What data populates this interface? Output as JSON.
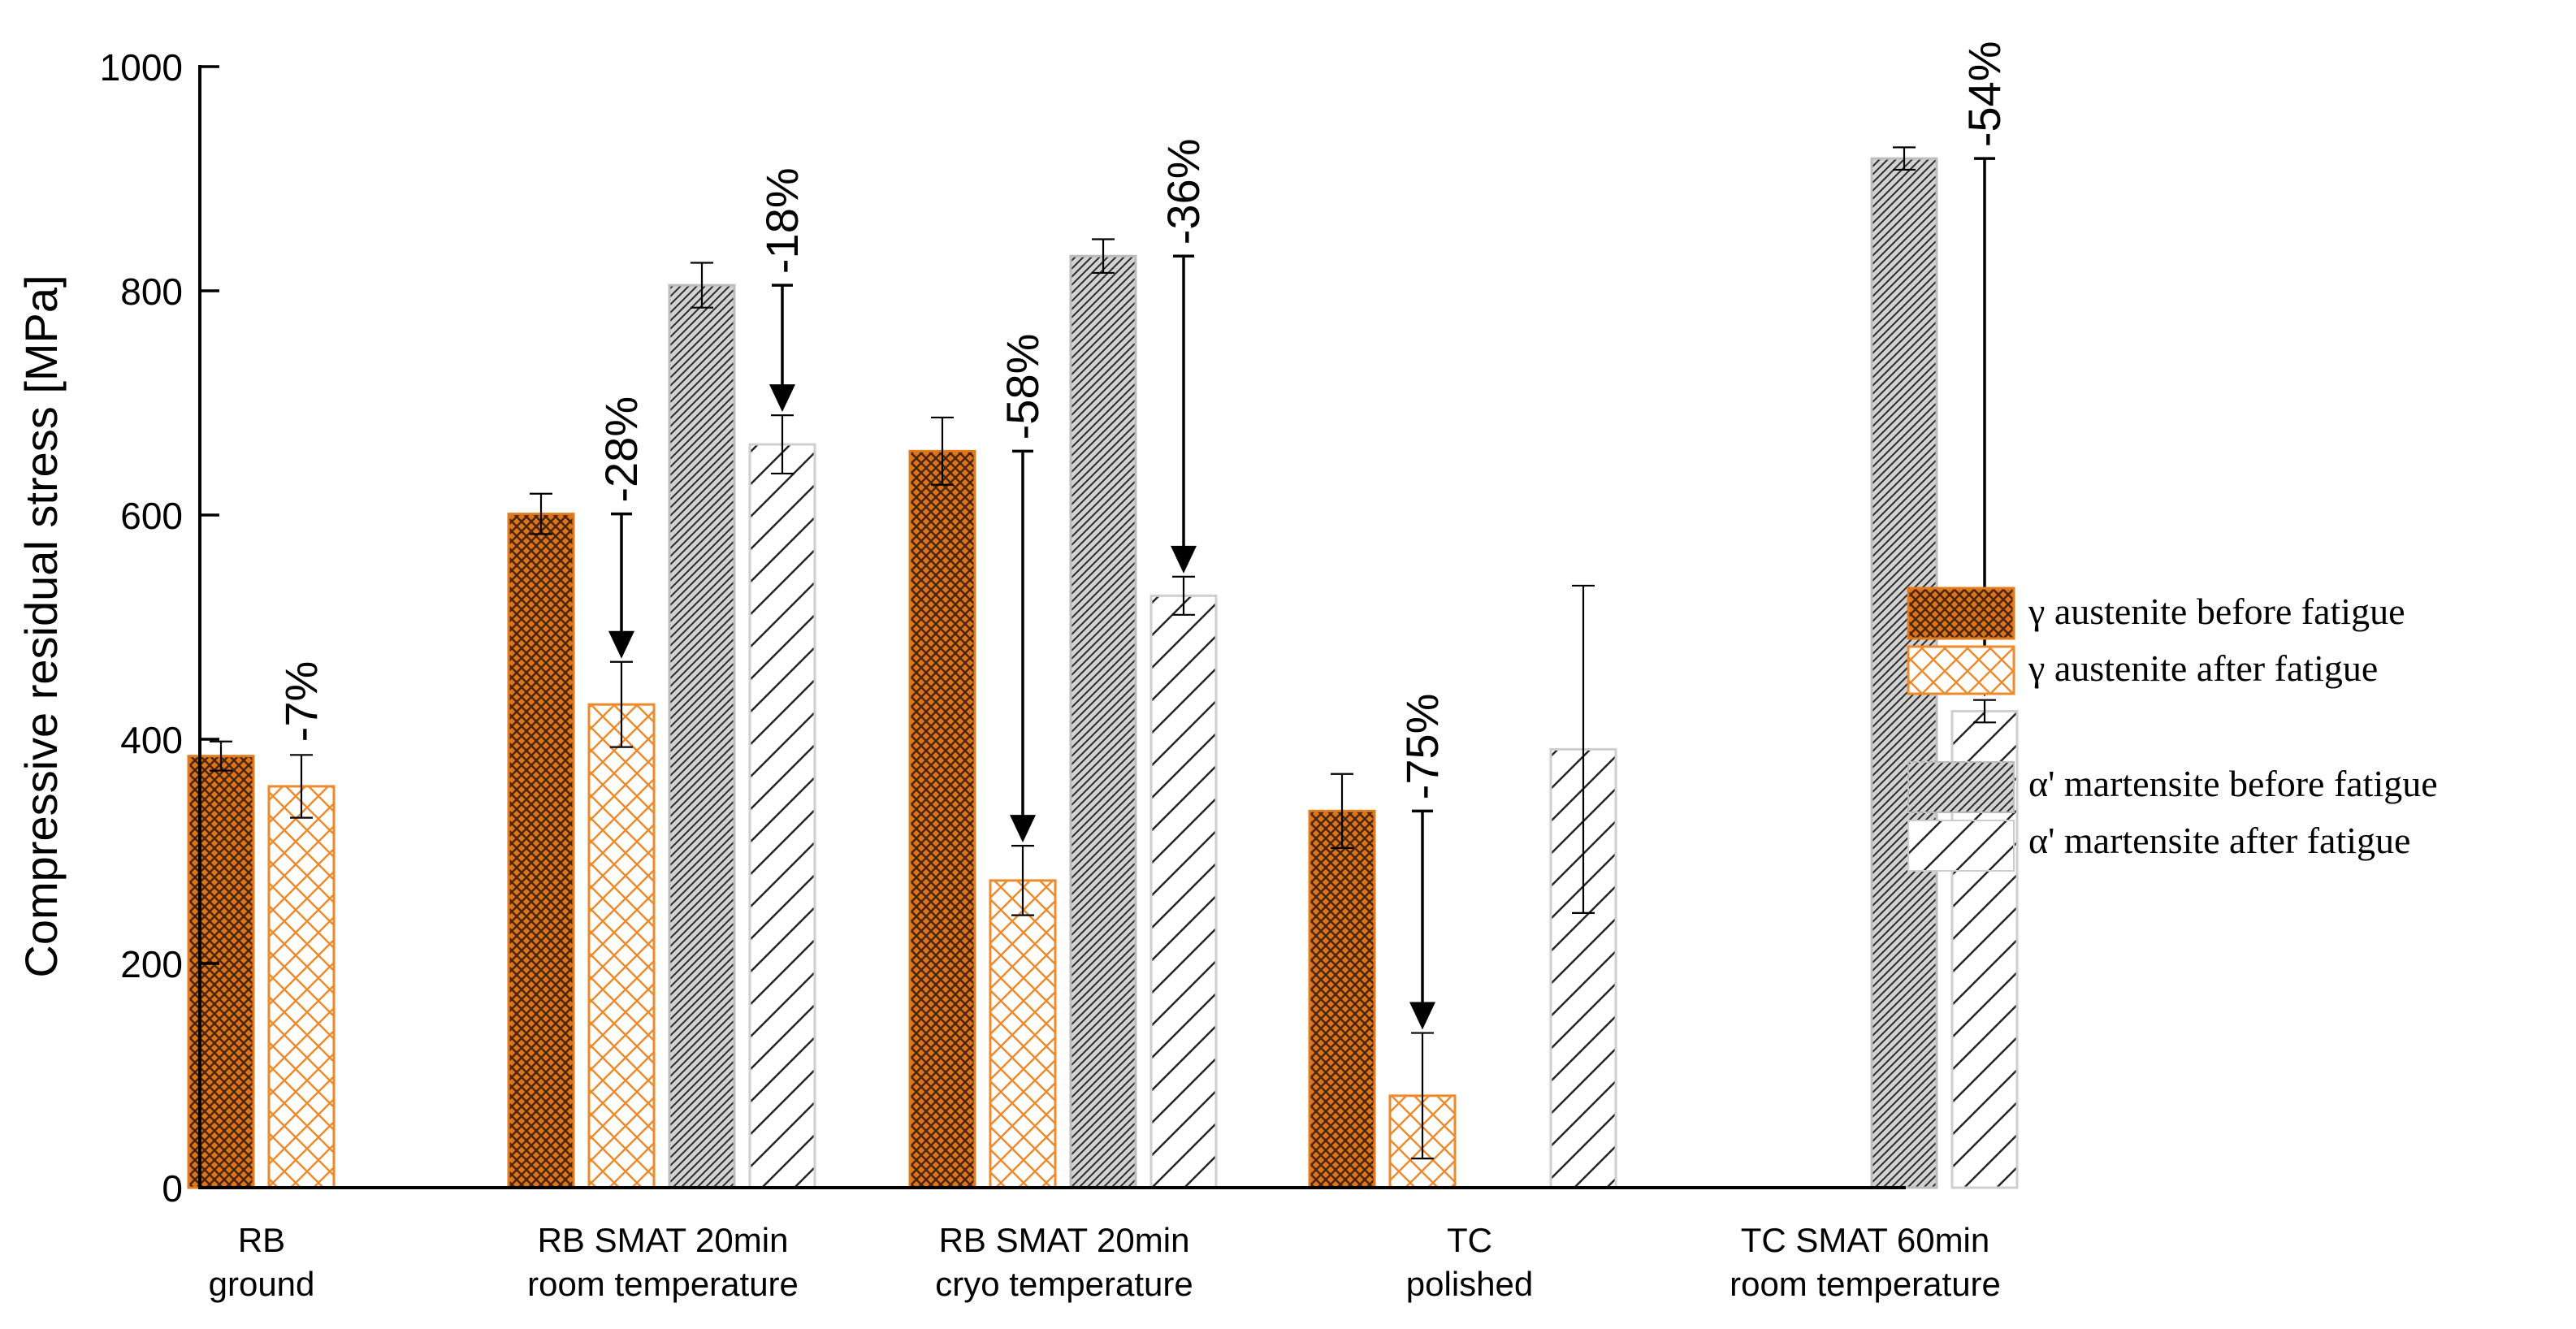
{
  "chart_data": {
    "type": "bar",
    "title": "",
    "xlabel": "",
    "ylabel": "Compressive residual stress [MPa]",
    "ylim": [
      0,
      1000
    ],
    "yticks": [
      0,
      200,
      400,
      600,
      800,
      1000
    ],
    "categories": [
      [
        "RB",
        "ground"
      ],
      [
        "RB SMAT 20min",
        "room temperature"
      ],
      [
        "RB SMAT 20min",
        "cryo temperature"
      ],
      [
        "TC",
        "polished"
      ],
      [
        "TC SMAT 60min",
        "room temperature"
      ]
    ],
    "series": [
      {
        "name": "γ austenite before fatigue",
        "style": "crosshatch-filled",
        "color": "#e07b1f",
        "values": [
          385,
          601,
          657,
          336,
          null
        ],
        "errors": [
          13,
          18,
          30,
          33,
          null
        ]
      },
      {
        "name": "γ austenite after fatigue",
        "style": "crosshatch-open",
        "color": "#e07b1f",
        "values": [
          358,
          431,
          274,
          82,
          null
        ],
        "errors": [
          28,
          38,
          31,
          56,
          null
        ]
      },
      {
        "name": "α' martensite before fatigue",
        "style": "dense-diagonal",
        "color": "#333333",
        "values": [
          null,
          805,
          831,
          null,
          918
        ],
        "errors": [
          null,
          20,
          15,
          null,
          10
        ]
      },
      {
        "name": "α' martensite after fatigue",
        "style": "sparse-diagonal",
        "color": "#222222",
        "values": [
          null,
          663,
          528,
          391,
          425
        ],
        "errors": [
          null,
          26,
          17,
          146,
          10
        ]
      }
    ],
    "annotations": [
      {
        "text": "-7%",
        "category": 0,
        "from_series": 0,
        "to_series": 1,
        "arrow": false
      },
      {
        "text": "-28%",
        "category": 1,
        "from_series": 0,
        "to_series": 1,
        "arrow": true
      },
      {
        "text": "-18%",
        "category": 1,
        "from_series": 2,
        "to_series": 3,
        "arrow": true
      },
      {
        "text": "-58%",
        "category": 2,
        "from_series": 0,
        "to_series": 1,
        "arrow": true
      },
      {
        "text": "-36%",
        "category": 2,
        "from_series": 2,
        "to_series": 3,
        "arrow": true
      },
      {
        "text": "-75%",
        "category": 3,
        "from_series": 0,
        "to_series": 1,
        "arrow": true
      },
      {
        "text": "-54%",
        "category": 4,
        "from_series": 2,
        "to_series": 3,
        "arrow": true
      }
    ],
    "legend_position": "right"
  }
}
